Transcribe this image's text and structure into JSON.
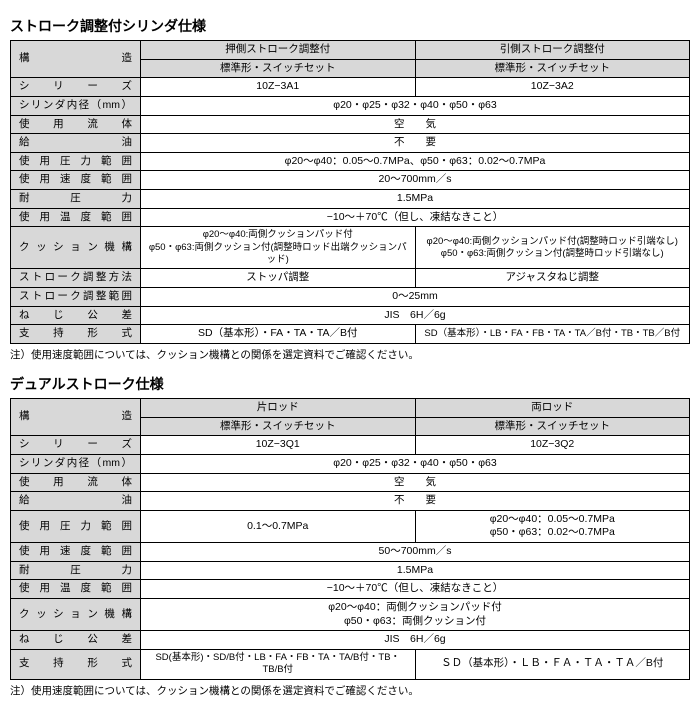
{
  "table1": {
    "title": "ストローク調整付シリンダ仕様",
    "structure_label": "構　　　　造",
    "col1": "押側ストローク調整付",
    "col2": "引側ストローク調整付",
    "sub": "標準形・スイッチセット",
    "rows": {
      "series_label": "シ　リ　ー　ズ",
      "series1": "10Z−3A1",
      "series2": "10Z−3A2",
      "bore_label": "シリンダ内径（mm）",
      "bore": "φ20・φ25・φ32・φ40・φ50・φ63",
      "fluid_label": "使　用　流　体",
      "fluid": "空　　気",
      "oil_label": "給　　　　油",
      "oil": "不　　要",
      "press_label": "使 用 圧 力 範 囲",
      "press": "φ20〜φ40：0.05〜0.7MPa、φ50・φ63：0.02〜0.7MPa",
      "speed_label": "使 用 速 度 範 囲",
      "speed": "20〜700mm／s",
      "proof_label": "耐　圧　力",
      "proof": "1.5MPa",
      "temp_label": "使 用 温 度 範 囲",
      "temp": "−10〜＋70℃（但し、凍結なきこと）",
      "cushion_label": "ク ッ シ ョ ン 機 構",
      "cushion1": "φ20〜φ40:両側クッションパッド付\nφ50・φ63:両側クッション付(調整時ロッド出端クッションパッド)",
      "cushion2": "φ20〜φ40:両側クッションパッド付(調整時ロッド引端なし)\nφ50・φ63:両側クッション付(調整時ロッド引端なし)",
      "adjmethod_label": "ストローク調整方法",
      "adjmethod1": "ストッパ調整",
      "adjmethod2": "アジャスタねじ調整",
      "adjrange_label": "ストローク調整範囲",
      "adjrange": "0〜25mm",
      "thread_label": "ね　じ　公　差",
      "thread": "JIS　6H／6g",
      "mount_label": "支　持　形　式",
      "mount1": "SD（基本形）・FA・TA・TA／B付",
      "mount2": "SD（基本形）・LB・FA・FB・TA・TA／B付・TB・TB／B付"
    },
    "note": "注）使用速度範囲については、クッション機構との関係を選定資料でご確認ください。"
  },
  "table2": {
    "title": "デュアルストローク仕様",
    "structure_label": "構　　　　造",
    "col1": "片ロッド",
    "col2": "両ロッド",
    "sub": "標準形・スイッチセット",
    "rows": {
      "series_label": "シ　リ　ー　ズ",
      "series1": "10Z−3Q1",
      "series2": "10Z−3Q2",
      "bore_label": "シリンダ内径（mm）",
      "bore": "φ20・φ25・φ32・φ40・φ50・φ63",
      "fluid_label": "使　用　流　体",
      "fluid": "空　　気",
      "oil_label": "給　　　　油",
      "oil": "不　　要",
      "press_label": "使 用 圧 力 範 囲",
      "press1": "0.1〜0.7MPa",
      "press2": "φ20〜φ40：0.05〜0.7MPa\nφ50・φ63：0.02〜0.7MPa",
      "speed_label": "使 用 速 度 範 囲",
      "speed": "50〜700mm／s",
      "proof_label": "耐　圧　力",
      "proof": "1.5MPa",
      "temp_label": "使 用 温 度 範 囲",
      "temp": "−10〜＋70℃（但し、凍結なきこと）",
      "cushion_label": "ク ッ シ ョ ン 機 構",
      "cushion": "φ20〜φ40：両側クッションパッド付\nφ50・φ63：両側クッション付",
      "thread_label": "ね　じ　公　差",
      "thread": "JIS　6H／6g",
      "mount_label": "支　持　形　式",
      "mount1": "SD(基本形)・SD/B付・LB・FA・FB・TA・TA/B付・TB・TB/B付",
      "mount2": "ＳＤ（基本形）・ＬＢ・ＦＡ・ＴＡ・ＴＡ／B付"
    },
    "note": "注）使用速度範囲については、クッション機構との関係を選定資料でご確認ください。"
  }
}
